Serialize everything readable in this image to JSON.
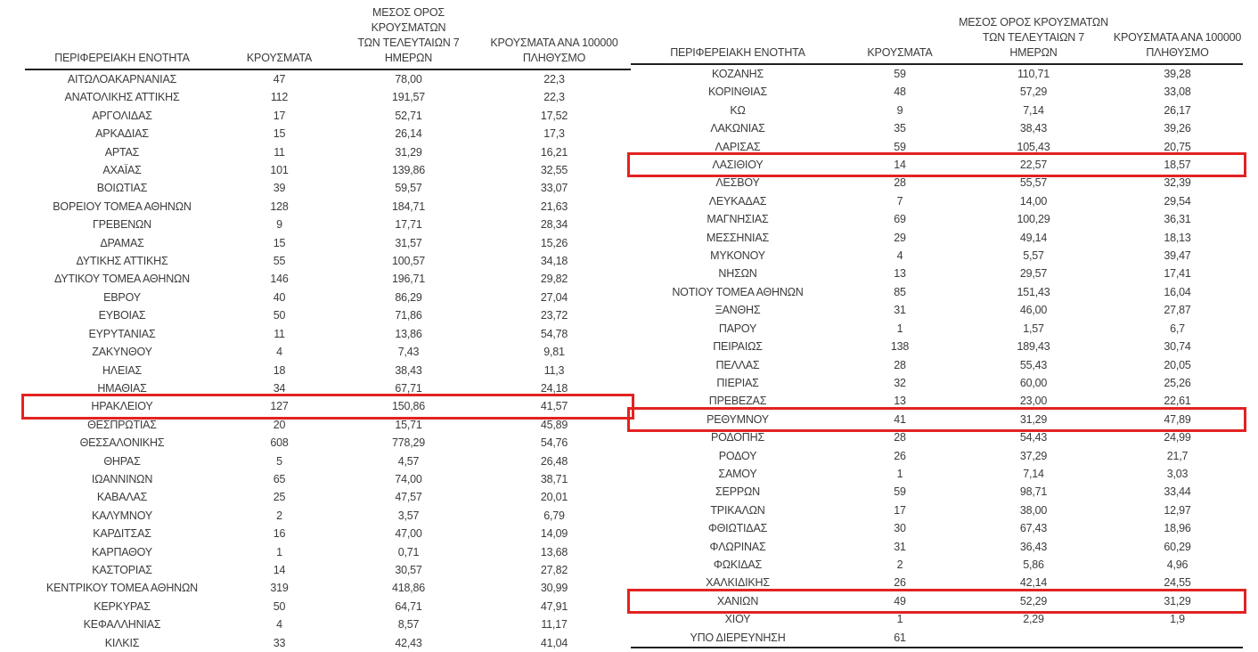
{
  "colors": {
    "highlight_red": "#e32222",
    "text": "#3b3b3b",
    "rule": "#1f1f1f"
  },
  "headers": {
    "region": "ΠΕΡΙΦΕΡΕΙΑΚΗ ΕΝΟΤΗΤΑ",
    "cases": "ΚΡΟΥΣΜΑΤΑ",
    "avg7": "ΜΕΣΟΣ ΟΡΟΣ ΚΡΟΥΣΜΑΤΩΝ\nΤΩΝ ΤΕΛΕΥΤΑΙΩΝ 7\nΗΜΕΡΩΝ",
    "per100k": "ΚΡΟΥΣΜΑΤΑ ΑΝΑ 100000\nΠΛΗΘΥΣΜΟ"
  },
  "tables": {
    "left": {
      "rows": [
        {
          "region": "ΑΙΤΩΛΟΑΚΑΡΝΑΝΙΑΣ",
          "cases": "47",
          "avg7": "78,00",
          "per100k": "22,3",
          "highlighted": false
        },
        {
          "region": "ΑΝΑΤΟΛΙΚΗΣ ΑΤΤΙΚΗΣ",
          "cases": "112",
          "avg7": "191,57",
          "per100k": "22,3",
          "highlighted": false
        },
        {
          "region": "ΑΡΓΟΛΙΔΑΣ",
          "cases": "17",
          "avg7": "52,71",
          "per100k": "17,52",
          "highlighted": false
        },
        {
          "region": "ΑΡΚΑΔΙΑΣ",
          "cases": "15",
          "avg7": "26,14",
          "per100k": "17,3",
          "highlighted": false
        },
        {
          "region": "ΑΡΤΑΣ",
          "cases": "11",
          "avg7": "31,29",
          "per100k": "16,21",
          "highlighted": false
        },
        {
          "region": "ΑΧΑΪΑΣ",
          "cases": "101",
          "avg7": "139,86",
          "per100k": "32,55",
          "highlighted": false
        },
        {
          "region": "ΒΟΙΩΤΙΑΣ",
          "cases": "39",
          "avg7": "59,57",
          "per100k": "33,07",
          "highlighted": false
        },
        {
          "region": "ΒΟΡΕΙΟΥ ΤΟΜΕΑ ΑΘΗΝΩΝ",
          "cases": "128",
          "avg7": "184,71",
          "per100k": "21,63",
          "highlighted": false
        },
        {
          "region": "ΓΡΕΒΕΝΩΝ",
          "cases": "9",
          "avg7": "17,71",
          "per100k": "28,34",
          "highlighted": false
        },
        {
          "region": "ΔΡΑΜΑΣ",
          "cases": "15",
          "avg7": "31,57",
          "per100k": "15,26",
          "highlighted": false
        },
        {
          "region": "ΔΥΤΙΚΗΣ ΑΤΤΙΚΗΣ",
          "cases": "55",
          "avg7": "100,57",
          "per100k": "34,18",
          "highlighted": false
        },
        {
          "region": "ΔΥΤΙΚΟΥ ΤΟΜΕΑ ΑΘΗΝΩΝ",
          "cases": "146",
          "avg7": "196,71",
          "per100k": "29,82",
          "highlighted": false
        },
        {
          "region": "ΕΒΡΟΥ",
          "cases": "40",
          "avg7": "86,29",
          "per100k": "27,04",
          "highlighted": false
        },
        {
          "region": "ΕΥΒΟΙΑΣ",
          "cases": "50",
          "avg7": "71,86",
          "per100k": "23,72",
          "highlighted": false
        },
        {
          "region": "ΕΥΡΥΤΑΝΙΑΣ",
          "cases": "11",
          "avg7": "13,86",
          "per100k": "54,78",
          "highlighted": false
        },
        {
          "region": "ΖΑΚΥΝΘΟΥ",
          "cases": "4",
          "avg7": "7,43",
          "per100k": "9,81",
          "highlighted": false
        },
        {
          "region": "ΗΛΕΙΑΣ",
          "cases": "18",
          "avg7": "38,43",
          "per100k": "11,3",
          "highlighted": false
        },
        {
          "region": "ΗΜΑΘΙΑΣ",
          "cases": "34",
          "avg7": "67,71",
          "per100k": "24,18",
          "highlighted": false
        },
        {
          "region": "ΗΡΑΚΛΕΙΟΥ",
          "cases": "127",
          "avg7": "150,86",
          "per100k": "41,57",
          "highlighted": true
        },
        {
          "region": "ΘΕΣΠΡΩΤΙΑΣ",
          "cases": "20",
          "avg7": "15,71",
          "per100k": "45,89",
          "highlighted": false
        },
        {
          "region": "ΘΕΣΣΑΛΟΝΙΚΗΣ",
          "cases": "608",
          "avg7": "778,29",
          "per100k": "54,76",
          "highlighted": false
        },
        {
          "region": "ΘΗΡΑΣ",
          "cases": "5",
          "avg7": "4,57",
          "per100k": "26,48",
          "highlighted": false
        },
        {
          "region": "ΙΩΑΝΝΙΝΩΝ",
          "cases": "65",
          "avg7": "74,00",
          "per100k": "38,71",
          "highlighted": false
        },
        {
          "region": "ΚΑΒΑΛΑΣ",
          "cases": "25",
          "avg7": "47,57",
          "per100k": "20,01",
          "highlighted": false
        },
        {
          "region": "ΚΑΛΥΜΝΟΥ",
          "cases": "2",
          "avg7": "3,57",
          "per100k": "6,79",
          "highlighted": false
        },
        {
          "region": "ΚΑΡΔΙΤΣΑΣ",
          "cases": "16",
          "avg7": "47,00",
          "per100k": "14,09",
          "highlighted": false
        },
        {
          "region": "ΚΑΡΠΑΘΟΥ",
          "cases": "1",
          "avg7": "0,71",
          "per100k": "13,68",
          "highlighted": false
        },
        {
          "region": "ΚΑΣΤΟΡΙΑΣ",
          "cases": "14",
          "avg7": "30,57",
          "per100k": "27,82",
          "highlighted": false
        },
        {
          "region": "ΚΕΝΤΡΙΚΟΥ ΤΟΜΕΑ ΑΘΗΝΩΝ",
          "cases": "319",
          "avg7": "418,86",
          "per100k": "30,99",
          "highlighted": false
        },
        {
          "region": "ΚΕΡΚΥΡΑΣ",
          "cases": "50",
          "avg7": "64,71",
          "per100k": "47,91",
          "highlighted": false
        },
        {
          "region": "ΚΕΦΑΛΛΗΝΙΑΣ",
          "cases": "4",
          "avg7": "8,57",
          "per100k": "11,17",
          "highlighted": false
        },
        {
          "region": "ΚΙΛΚΙΣ",
          "cases": "33",
          "avg7": "42,43",
          "per100k": "41,04",
          "highlighted": false
        }
      ]
    },
    "right": {
      "rows": [
        {
          "region": "ΚΟΖΑΝΗΣ",
          "cases": "59",
          "avg7": "110,71",
          "per100k": "39,28",
          "highlighted": false
        },
        {
          "region": "ΚΟΡΙΝΘΙΑΣ",
          "cases": "48",
          "avg7": "57,29",
          "per100k": "33,08",
          "highlighted": false
        },
        {
          "region": "ΚΩ",
          "cases": "9",
          "avg7": "7,14",
          "per100k": "26,17",
          "highlighted": false
        },
        {
          "region": "ΛΑΚΩΝΙΑΣ",
          "cases": "35",
          "avg7": "38,43",
          "per100k": "39,26",
          "highlighted": false
        },
        {
          "region": "ΛΑΡΙΣΑΣ",
          "cases": "59",
          "avg7": "105,43",
          "per100k": "20,75",
          "highlighted": false
        },
        {
          "region": "ΛΑΣΙΘΙΟΥ",
          "cases": "14",
          "avg7": "22,57",
          "per100k": "18,57",
          "highlighted": true
        },
        {
          "region": "ΛΕΣΒΟΥ",
          "cases": "28",
          "avg7": "55,57",
          "per100k": "32,39",
          "highlighted": false
        },
        {
          "region": "ΛΕΥΚΑΔΑΣ",
          "cases": "7",
          "avg7": "14,00",
          "per100k": "29,54",
          "highlighted": false
        },
        {
          "region": "ΜΑΓΝΗΣΙΑΣ",
          "cases": "69",
          "avg7": "100,29",
          "per100k": "36,31",
          "highlighted": false
        },
        {
          "region": "ΜΕΣΣΗΝΙΑΣ",
          "cases": "29",
          "avg7": "49,14",
          "per100k": "18,13",
          "highlighted": false
        },
        {
          "region": "ΜΥΚΟΝΟΥ",
          "cases": "4",
          "avg7": "5,57",
          "per100k": "39,47",
          "highlighted": false
        },
        {
          "region": "ΝΗΣΩΝ",
          "cases": "13",
          "avg7": "29,57",
          "per100k": "17,41",
          "highlighted": false
        },
        {
          "region": "ΝΟΤΙΟΥ ΤΟΜΕΑ ΑΘΗΝΩΝ",
          "cases": "85",
          "avg7": "151,43",
          "per100k": "16,04",
          "highlighted": false
        },
        {
          "region": "ΞΑΝΘΗΣ",
          "cases": "31",
          "avg7": "46,00",
          "per100k": "27,87",
          "highlighted": false
        },
        {
          "region": "ΠΑΡΟΥ",
          "cases": "1",
          "avg7": "1,57",
          "per100k": "6,7",
          "highlighted": false
        },
        {
          "region": "ΠΕΙΡΑΙΩΣ",
          "cases": "138",
          "avg7": "189,43",
          "per100k": "30,74",
          "highlighted": false
        },
        {
          "region": "ΠΕΛΛΑΣ",
          "cases": "28",
          "avg7": "55,43",
          "per100k": "20,05",
          "highlighted": false
        },
        {
          "region": "ΠΙΕΡΙΑΣ",
          "cases": "32",
          "avg7": "60,00",
          "per100k": "25,26",
          "highlighted": false
        },
        {
          "region": "ΠΡΕΒΕΖΑΣ",
          "cases": "13",
          "avg7": "23,00",
          "per100k": "22,61",
          "highlighted": false
        },
        {
          "region": "ΡΕΘΥΜΝΟΥ",
          "cases": "41",
          "avg7": "31,29",
          "per100k": "47,89",
          "highlighted": true
        },
        {
          "region": "ΡΟΔΟΠΗΣ",
          "cases": "28",
          "avg7": "54,43",
          "per100k": "24,99",
          "highlighted": false
        },
        {
          "region": "ΡΟΔΟΥ",
          "cases": "26",
          "avg7": "37,29",
          "per100k": "21,7",
          "highlighted": false
        },
        {
          "region": "ΣΑΜΟΥ",
          "cases": "1",
          "avg7": "7,14",
          "per100k": "3,03",
          "highlighted": false
        },
        {
          "region": "ΣΕΡΡΩΝ",
          "cases": "59",
          "avg7": "98,71",
          "per100k": "33,44",
          "highlighted": false
        },
        {
          "region": "ΤΡΙΚΑΛΩΝ",
          "cases": "17",
          "avg7": "38,00",
          "per100k": "12,97",
          "highlighted": false
        },
        {
          "region": "ΦΘΙΩΤΙΔΑΣ",
          "cases": "30",
          "avg7": "67,43",
          "per100k": "18,96",
          "highlighted": false
        },
        {
          "region": "ΦΛΩΡΙΝΑΣ",
          "cases": "31",
          "avg7": "36,43",
          "per100k": "60,29",
          "highlighted": false
        },
        {
          "region": "ΦΩΚΙΔΑΣ",
          "cases": "2",
          "avg7": "5,86",
          "per100k": "4,96",
          "highlighted": false
        },
        {
          "region": "ΧΑΛΚΙΔΙΚΗΣ",
          "cases": "26",
          "avg7": "42,14",
          "per100k": "24,55",
          "highlighted": false
        },
        {
          "region": "ΧΑΝΙΩΝ",
          "cases": "49",
          "avg7": "52,29",
          "per100k": "31,29",
          "highlighted": true
        },
        {
          "region": "ΧΙΟΥ",
          "cases": "1",
          "avg7": "2,29",
          "per100k": "1,9",
          "highlighted": false
        },
        {
          "region": "ΥΠΟ ΔΙΕΡΕΥΝΗΣΗ",
          "cases": "61",
          "avg7": "",
          "per100k": "",
          "highlighted": false
        }
      ]
    }
  }
}
